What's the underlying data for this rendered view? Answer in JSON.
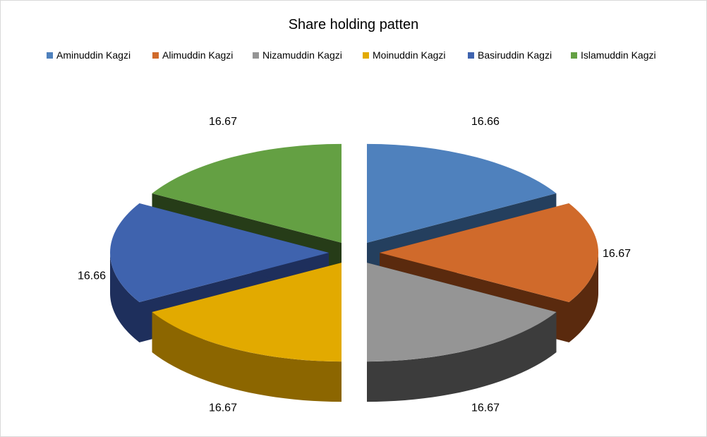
{
  "chart_data": {
    "type": "pie",
    "title": "Share holding patten",
    "legend_position": "top",
    "categories": [
      "Aminuddin  Kagzi",
      "Alimuddin  Kagzi",
      "Nizamuddin Kagzi",
      "Moinuddin  Kagzi",
      "Basiruddin Kagzi",
      "Islamuddin Kagzi"
    ],
    "values": [
      16.66,
      16.67,
      16.67,
      16.67,
      16.66,
      16.67
    ],
    "data_labels": [
      "16.66",
      "16.67",
      "16.67",
      "16.67",
      "16.66",
      "16.67"
    ],
    "colors": [
      "#4F81BD",
      "#D06A2B",
      "#959595",
      "#E2AA00",
      "#3F63AE",
      "#64A043"
    ],
    "side_colors": [
      "#243F5E",
      "#5A2A0E",
      "#3C3C3C",
      "#8C6600",
      "#1E2F5C",
      "#263C18"
    ],
    "exploded": true,
    "style": "3d"
  }
}
